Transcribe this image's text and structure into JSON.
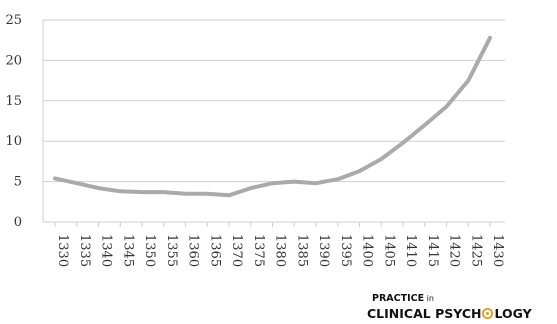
{
  "chart_data": {
    "type": "line",
    "x": [
      1330,
      1335,
      1340,
      1345,
      1350,
      1355,
      1360,
      1365,
      1370,
      1375,
      1380,
      1385,
      1390,
      1395,
      1400,
      1405,
      1410,
      1415,
      1420,
      1425,
      1430
    ],
    "x_labels": [
      "1330",
      "1335",
      "1340",
      "1345",
      "1350",
      "1355",
      "1360",
      "1365",
      "1370",
      "1375",
      "1380",
      "1385",
      "1390",
      "1395",
      "1400",
      "1405",
      "1410",
      "1415",
      "1420",
      "1425",
      "1430"
    ],
    "series": [
      {
        "values": [
          5.4,
          4.8,
          4.2,
          3.8,
          3.7,
          3.7,
          3.5,
          3.5,
          3.3,
          4.2,
          4.8,
          5.0,
          4.8,
          5.3,
          6.3,
          7.8,
          9.8,
          12.0,
          14.3,
          17.5,
          22.8
        ]
      }
    ],
    "ylim": [
      0,
      25
    ],
    "y_ticks": [
      "0",
      "5",
      "10",
      "15",
      "20",
      "25"
    ],
    "grid": true,
    "line_color": "#aaaaaa",
    "grid_color": "#cfcfcf"
  },
  "brand": {
    "line1_a": "PRACTICE",
    "line1_b": " in",
    "line2_a": "CLINICAL PSYCH",
    "line2_b": "LOGY",
    "accent_color": "#e69a1f"
  }
}
